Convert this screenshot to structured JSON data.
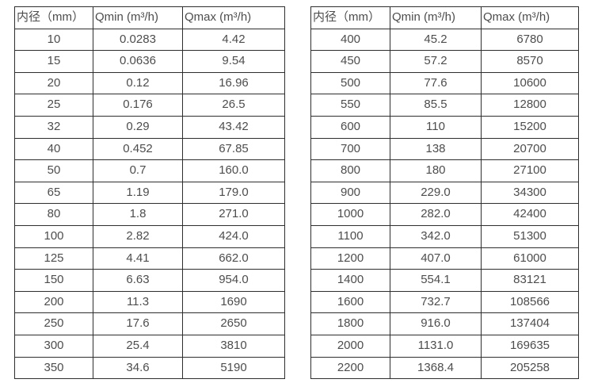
{
  "page": {
    "background_color": "#ffffff",
    "text_color": "#4d4d4d",
    "border_color": "#2e2e2e"
  },
  "tables": [
    {
      "name": "flow-rate-table-small-diameters",
      "headers": [
        "内径（mm）",
        "Qmin (m³/h)",
        "Qmax (m³/h)"
      ],
      "rows": [
        [
          "10",
          "0.0283",
          "4.42"
        ],
        [
          "15",
          "0.0636",
          "9.54"
        ],
        [
          "20",
          "0.12",
          "16.96"
        ],
        [
          "25",
          "0.176",
          "26.5"
        ],
        [
          "32",
          "0.29",
          "43.42"
        ],
        [
          "40",
          "0.452",
          "67.85"
        ],
        [
          "50",
          "0.7",
          "160.0"
        ],
        [
          "65",
          "1.19",
          "179.0"
        ],
        [
          "80",
          "1.8",
          "271.0"
        ],
        [
          "100",
          "2.82",
          "424.0"
        ],
        [
          "125",
          "4.41",
          "662.0"
        ],
        [
          "150",
          "6.63",
          "954.0"
        ],
        [
          "200",
          "11.3",
          "1690"
        ],
        [
          "250",
          "17.6",
          "2650"
        ],
        [
          "300",
          "25.4",
          "3810"
        ],
        [
          "350",
          "34.6",
          "5190"
        ]
      ]
    },
    {
      "name": "flow-rate-table-large-diameters",
      "headers": [
        "内径（mm）",
        "Qmin (m³/h)",
        "Qmax (m³/h)"
      ],
      "rows": [
        [
          "400",
          "45.2",
          "6780"
        ],
        [
          "450",
          "57.2",
          "8570"
        ],
        [
          "500",
          "77.6",
          "10600"
        ],
        [
          "550",
          "85.5",
          "12800"
        ],
        [
          "600",
          "110",
          "15200"
        ],
        [
          "700",
          "138",
          "20700"
        ],
        [
          "800",
          "180",
          "27100"
        ],
        [
          "900",
          "229.0",
          "34300"
        ],
        [
          "1000",
          "282.0",
          "42400"
        ],
        [
          "1100",
          "342.0",
          "51300"
        ],
        [
          "1200",
          "407.0",
          "61000"
        ],
        [
          "1400",
          "554.1",
          "83121"
        ],
        [
          "1600",
          "732.7",
          "108566"
        ],
        [
          "1800",
          "916.0",
          "137404"
        ],
        [
          "2000",
          "1131.0",
          "169635"
        ],
        [
          "2200",
          "1368.4",
          "205258"
        ]
      ]
    }
  ]
}
